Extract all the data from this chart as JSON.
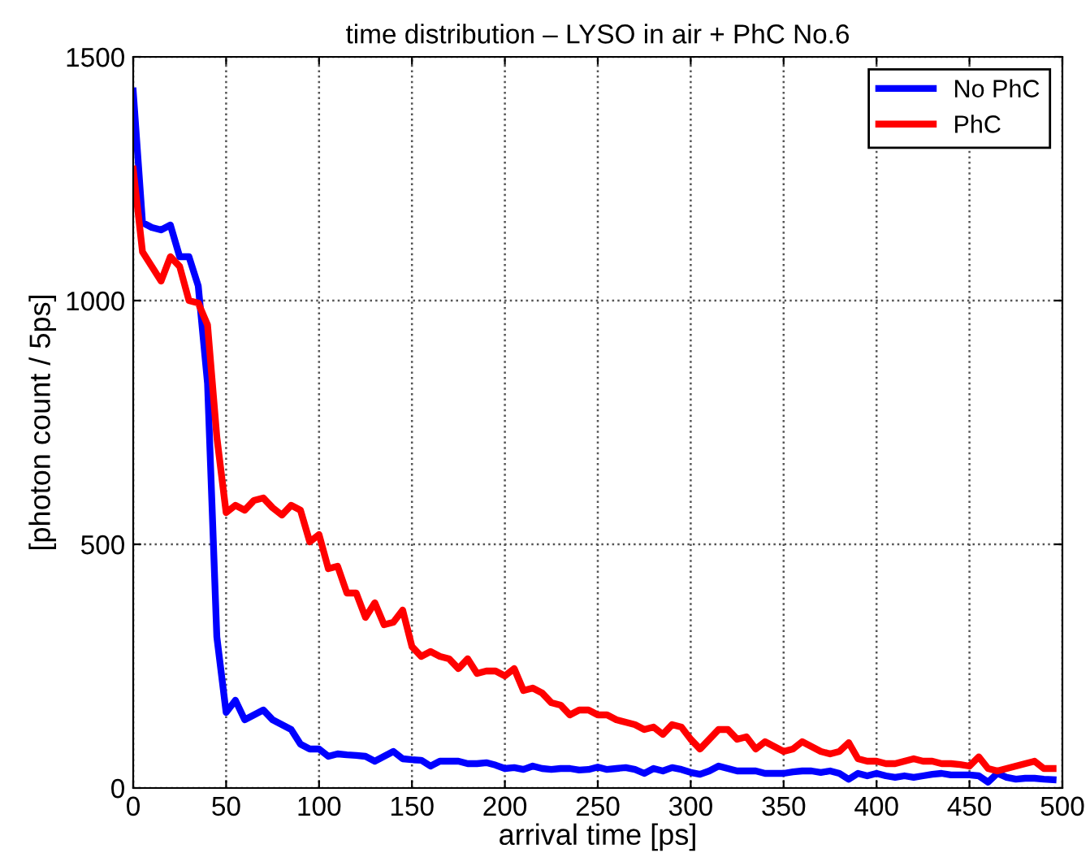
{
  "chart_data": {
    "type": "line",
    "title": "time distribution – LYSO in air + PhC No.6",
    "xlabel": "arrival time [ps]",
    "ylabel": "[photon count / 5ps]",
    "x": [
      0,
      5,
      10,
      15,
      20,
      25,
      30,
      35,
      40,
      45,
      50,
      55,
      60,
      65,
      70,
      75,
      80,
      85,
      90,
      95,
      100,
      105,
      110,
      115,
      120,
      125,
      130,
      135,
      140,
      145,
      150,
      155,
      160,
      165,
      170,
      175,
      180,
      185,
      190,
      195,
      200,
      205,
      210,
      215,
      220,
      225,
      230,
      235,
      240,
      245,
      250,
      255,
      260,
      265,
      270,
      275,
      280,
      285,
      290,
      295,
      300,
      305,
      310,
      315,
      320,
      325,
      330,
      335,
      340,
      345,
      350,
      355,
      360,
      365,
      370,
      375,
      380,
      385,
      390,
      395,
      400,
      405,
      410,
      415,
      420,
      425,
      430,
      435,
      440,
      445,
      450,
      455,
      460,
      465,
      470,
      475,
      480,
      485,
      490,
      495
    ],
    "series": [
      {
        "name": "No PhC",
        "color": "#0000ff",
        "values": [
          1430,
          1160,
          1150,
          1145,
          1155,
          1090,
          1090,
          1030,
          830,
          310,
          155,
          180,
          140,
          150,
          160,
          140,
          130,
          120,
          90,
          80,
          80,
          65,
          70,
          68,
          67,
          65,
          55,
          65,
          75,
          60,
          58,
          57,
          45,
          55,
          55,
          55,
          50,
          50,
          52,
          47,
          40,
          42,
          38,
          45,
          40,
          38,
          40,
          40,
          37,
          38,
          43,
          38,
          40,
          42,
          38,
          30,
          40,
          35,
          42,
          38,
          32,
          28,
          35,
          45,
          40,
          35,
          35,
          35,
          30,
          30,
          30,
          33,
          35,
          35,
          32,
          35,
          30,
          18,
          30,
          25,
          30,
          25,
          22,
          25,
          22,
          25,
          28,
          30,
          27,
          27,
          27,
          25,
          12,
          30,
          22,
          18,
          20,
          20,
          18,
          17
        ]
      },
      {
        "name": "PhC",
        "color": "#ff0000",
        "values": [
          1270,
          1100,
          1070,
          1040,
          1090,
          1070,
          1000,
          995,
          950,
          720,
          565,
          580,
          570,
          590,
          595,
          575,
          560,
          580,
          570,
          505,
          520,
          450,
          455,
          400,
          400,
          350,
          380,
          335,
          340,
          365,
          290,
          270,
          280,
          270,
          265,
          245,
          265,
          235,
          240,
          240,
          230,
          245,
          200,
          205,
          195,
          175,
          170,
          150,
          160,
          160,
          150,
          150,
          140,
          135,
          130,
          120,
          125,
          110,
          130,
          125,
          100,
          80,
          100,
          120,
          120,
          100,
          105,
          80,
          95,
          85,
          75,
          80,
          95,
          85,
          75,
          70,
          75,
          93,
          60,
          55,
          55,
          50,
          50,
          55,
          60,
          55,
          55,
          50,
          50,
          48,
          45,
          64,
          40,
          35,
          40,
          45,
          50,
          55,
          40,
          40
        ]
      }
    ],
    "xlim": [
      0,
      500
    ],
    "ylim": [
      0,
      1500
    ],
    "xticks": [
      0,
      50,
      100,
      150,
      200,
      250,
      300,
      350,
      400,
      450,
      500
    ],
    "yticks": [
      0,
      500,
      1000,
      1500
    ],
    "grid": true,
    "legend": "top right",
    "marker": "none",
    "line_style": "solid"
  }
}
